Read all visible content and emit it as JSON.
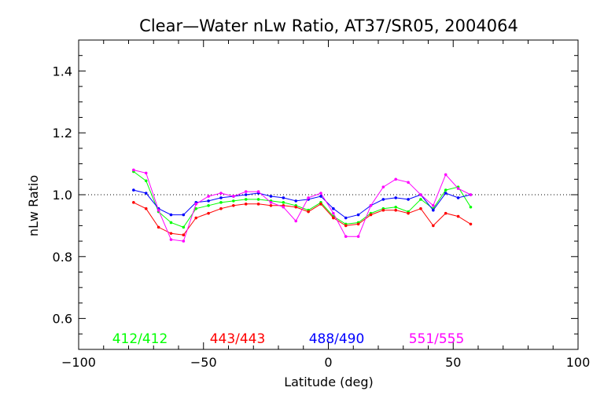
{
  "chart_data": {
    "type": "line",
    "title": "Clear—Water nLw Ratio, AT37/SR05, 2004064",
    "xlabel": "Latitude (deg)",
    "ylabel": "nLw Ratio",
    "xlim": [
      -100,
      100
    ],
    "ylim": [
      0.5,
      1.5
    ],
    "xticks": [
      -100,
      -50,
      0,
      50,
      100
    ],
    "xtick_labels": [
      "−100",
      "−50",
      "0",
      "50",
      "100"
    ],
    "yticks": [
      0.6,
      0.8,
      1.0,
      1.2,
      1.4
    ],
    "ytick_labels": [
      "0.6",
      "0.8",
      "1.0",
      "1.2",
      "1.4"
    ],
    "reference_line": 1.0,
    "grid": false,
    "legend_position": "bottom, inside plot",
    "series": [
      {
        "name": "412/412",
        "color": "#00ff00",
        "x": [
          -78,
          -73,
          -68,
          -63,
          -58,
          -53,
          -48,
          -43,
          -38,
          -33,
          -28,
          -23,
          -18,
          -13,
          -8,
          -3,
          2,
          7,
          12,
          17,
          22,
          27,
          32,
          37,
          42,
          47,
          52,
          57
        ],
        "y": [
          1.075,
          1.045,
          0.945,
          0.91,
          0.895,
          0.955,
          0.965,
          0.975,
          0.98,
          0.985,
          0.985,
          0.98,
          0.975,
          0.965,
          0.95,
          0.975,
          0.93,
          0.905,
          0.91,
          0.94,
          0.955,
          0.96,
          0.945,
          0.985,
          0.955,
          1.015,
          1.025,
          0.96
        ]
      },
      {
        "name": "443/443",
        "color": "#ff0000",
        "x": [
          -78,
          -73,
          -68,
          -63,
          -58,
          -53,
          -48,
          -43,
          -38,
          -33,
          -28,
          -23,
          -18,
          -13,
          -8,
          -3,
          2,
          7,
          12,
          17,
          22,
          27,
          32,
          37,
          42,
          47,
          52,
          57
        ],
        "y": [
          0.975,
          0.955,
          0.895,
          0.875,
          0.87,
          0.925,
          0.94,
          0.955,
          0.965,
          0.97,
          0.97,
          0.965,
          0.965,
          0.96,
          0.945,
          0.97,
          0.925,
          0.9,
          0.905,
          0.935,
          0.95,
          0.95,
          0.94,
          0.955,
          0.9,
          0.94,
          0.93,
          0.905
        ]
      },
      {
        "name": "488/490",
        "color": "#0000ff",
        "x": [
          -78,
          -73,
          -68,
          -63,
          -58,
          -53,
          -48,
          -43,
          -38,
          -33,
          -28,
          -23,
          -18,
          -13,
          -8,
          -3,
          2,
          7,
          12,
          17,
          22,
          27,
          32,
          37,
          42,
          47,
          52,
          57
        ],
        "y": [
          1.015,
          1.005,
          0.955,
          0.935,
          0.935,
          0.975,
          0.98,
          0.99,
          0.995,
          1.0,
          1.005,
          0.995,
          0.99,
          0.98,
          0.985,
          0.995,
          0.955,
          0.925,
          0.935,
          0.965,
          0.985,
          0.99,
          0.985,
          1.0,
          0.95,
          1.005,
          0.99,
          1.0
        ]
      },
      {
        "name": "551/555",
        "color": "#ff00ff",
        "x": [
          -78,
          -73,
          -68,
          -63,
          -58,
          -53,
          -48,
          -43,
          -38,
          -33,
          -28,
          -23,
          -18,
          -13,
          -8,
          -3,
          2,
          7,
          12,
          17,
          22,
          27,
          32,
          37,
          42,
          47,
          52,
          57
        ],
        "y": [
          1.08,
          1.07,
          0.95,
          0.855,
          0.85,
          0.97,
          0.995,
          1.005,
          0.995,
          1.01,
          1.01,
          0.975,
          0.96,
          0.915,
          0.99,
          1.005,
          0.94,
          0.865,
          0.865,
          0.965,
          1.025,
          1.05,
          1.04,
          1.0,
          0.965,
          1.065,
          1.02,
          1.0
        ]
      }
    ]
  }
}
